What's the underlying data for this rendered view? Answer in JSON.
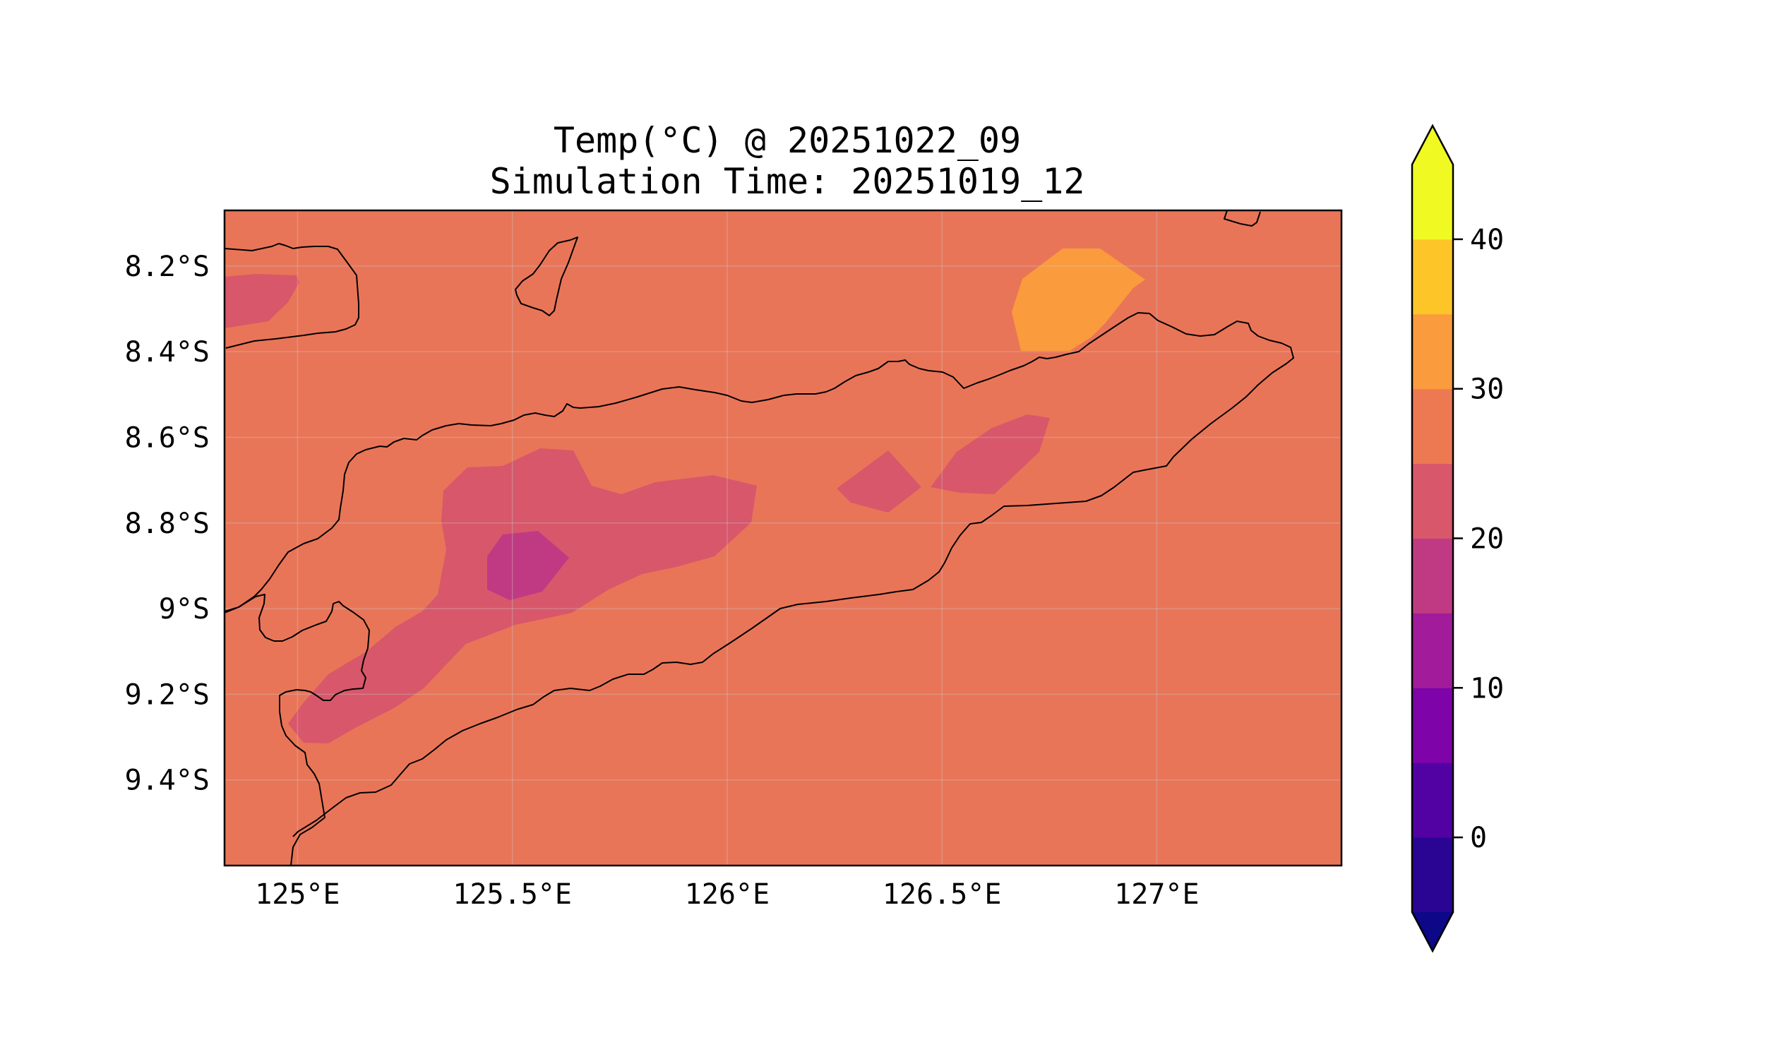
{
  "title": "Temp(°C) @ 20251022_09",
  "subtitle": "Simulation Time: 20251019_12",
  "map": {
    "lon_range": [
      124.83,
      127.43
    ],
    "lat_range": [
      -9.6,
      -8.07
    ],
    "lon_ticks": [
      {
        "value": 125.0,
        "label": "125°E"
      },
      {
        "value": 125.5,
        "label": "125.5°E"
      },
      {
        "value": 126.0,
        "label": "126°E"
      },
      {
        "value": 126.5,
        "label": "126.5°E"
      },
      {
        "value": 127.0,
        "label": "127°E"
      }
    ],
    "lat_ticks": [
      {
        "value": -8.2,
        "label": "8.2°S"
      },
      {
        "value": -8.4,
        "label": "8.4°S"
      },
      {
        "value": -8.6,
        "label": "8.6°S"
      },
      {
        "value": -8.8,
        "label": "8.8°S"
      },
      {
        "value": -9.0,
        "label": "9°S"
      },
      {
        "value": -9.2,
        "label": "9.2°S"
      },
      {
        "value": -9.4,
        "label": "9.4°S"
      }
    ],
    "gridlines": true,
    "background_level_color": "#e97558"
  },
  "colorbar": {
    "levels": [
      -5,
      0,
      5,
      10,
      15,
      20,
      25,
      30,
      35,
      40,
      45
    ],
    "colors": [
      "#2a0593",
      "#5201a3",
      "#7e03a8",
      "#a11b9b",
      "#c03a83",
      "#d8576b",
      "#ed7953",
      "#fa9b3d",
      "#fdc527",
      "#f0f921"
    ],
    "under_color": "#0d0887",
    "over_color": "#f0f921",
    "tick_labels": [
      {
        "value": 0,
        "label": "0"
      },
      {
        "value": 10,
        "label": "10"
      },
      {
        "value": 20,
        "label": "20"
      },
      {
        "value": 30,
        "label": "30"
      },
      {
        "value": 40,
        "label": "40"
      }
    ],
    "extend": "both"
  }
}
